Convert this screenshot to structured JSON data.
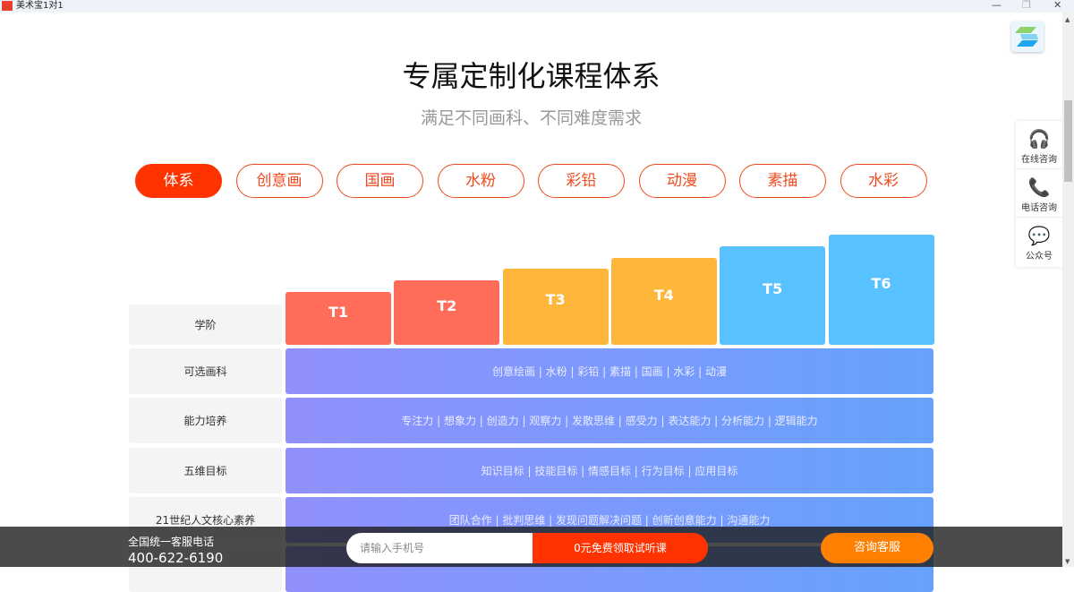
{
  "window": {
    "title": "美术宝1对1",
    "minimize": "—",
    "restore": "❐",
    "close": "✕"
  },
  "header": {
    "title": "专属定制化课程体系",
    "subtitle": "满足不同画科、不同难度需求"
  },
  "tabs": [
    {
      "label": "体系",
      "active": true
    },
    {
      "label": "创意画"
    },
    {
      "label": "国画"
    },
    {
      "label": "水粉"
    },
    {
      "label": "彩铅"
    },
    {
      "label": "动漫"
    },
    {
      "label": "素描"
    },
    {
      "label": "水彩"
    }
  ],
  "table": {
    "stage_label": "学阶",
    "steps": [
      {
        "label": "T1",
        "color": "#ff6c5a"
      },
      {
        "label": "T2",
        "color": "#ff6c5a"
      },
      {
        "label": "T3",
        "color": "#feb73b"
      },
      {
        "label": "T4",
        "color": "#feb73b"
      },
      {
        "label": "T5",
        "color": "#58c1ff"
      },
      {
        "label": "T6",
        "color": "#58c1ff"
      }
    ],
    "rows": [
      {
        "label": "可选画科",
        "value": "创意绘画 | 水粉 | 彩铅 | 素描 | 国画 | 水彩 | 动漫"
      },
      {
        "label": "能力培养",
        "value": "专注力 | 想象力 | 创造力 | 观察力 | 发散思维 | 感受力 | 表达能力 | 分析能力 | 逻辑能力"
      },
      {
        "label": "五维目标",
        "value": "知识目标 | 技能目标 | 情感目标 | 行为目标 | 应用目标"
      },
      {
        "label": "21世纪人文核心素养",
        "value": "团队合作 | 批判思维 | 发现问题解决问题 | 创新创意能力 | 沟通能力"
      }
    ]
  },
  "side": [
    {
      "label": "在线咨询",
      "icon": "headset-icon"
    },
    {
      "label": "电话咨询",
      "icon": "phone-icon"
    },
    {
      "label": "公众号",
      "icon": "wechat-icon"
    }
  ],
  "bottom": {
    "hotline_label": "全国统一客服电话",
    "hotline": "400-622-6190",
    "phone_placeholder": "请输入手机号",
    "free_button": "0元免费领取试听课",
    "consult_button": "咨询客服"
  },
  "colors": {
    "accent": "#ff3300",
    "orange": "#ff7f00"
  }
}
